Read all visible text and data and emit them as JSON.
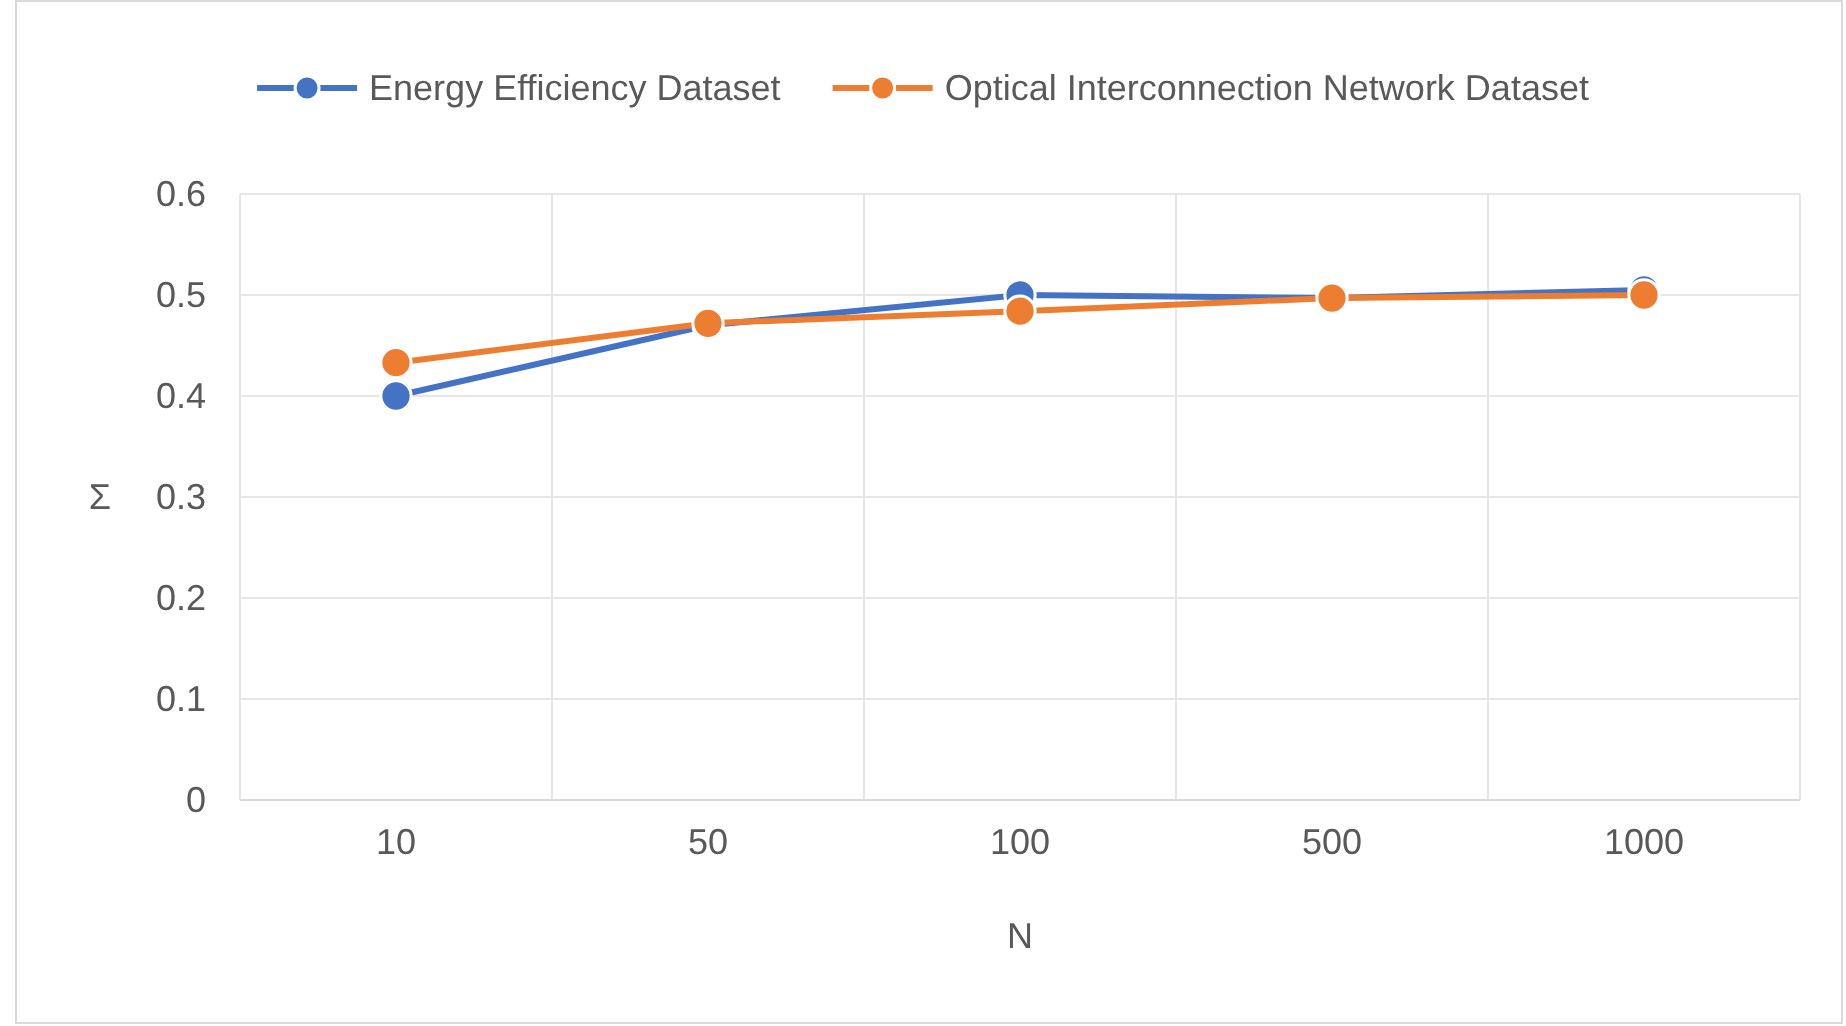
{
  "chart_data": {
    "type": "line",
    "xlabel": "N",
    "ylabel": "Σ",
    "categories": [
      "10",
      "50",
      "100",
      "500",
      "1000"
    ],
    "series": [
      {
        "name": "Energy Efficiency Dataset",
        "color": "#4472c4",
        "values": [
          0.4,
          0.47,
          0.5,
          0.497,
          0.505
        ]
      },
      {
        "name": "Optical Interconnection Network Dataset",
        "color": "#ed7d31",
        "values": [
          0.433,
          0.472,
          0.484,
          0.497,
          0.5
        ]
      }
    ],
    "ylim": [
      0,
      0.6
    ],
    "yticks": [
      0,
      0.1,
      0.2,
      0.3,
      0.4,
      0.5,
      0.6
    ],
    "grid": true,
    "legend": "top",
    "marker": "circle",
    "line_style": "solid"
  }
}
